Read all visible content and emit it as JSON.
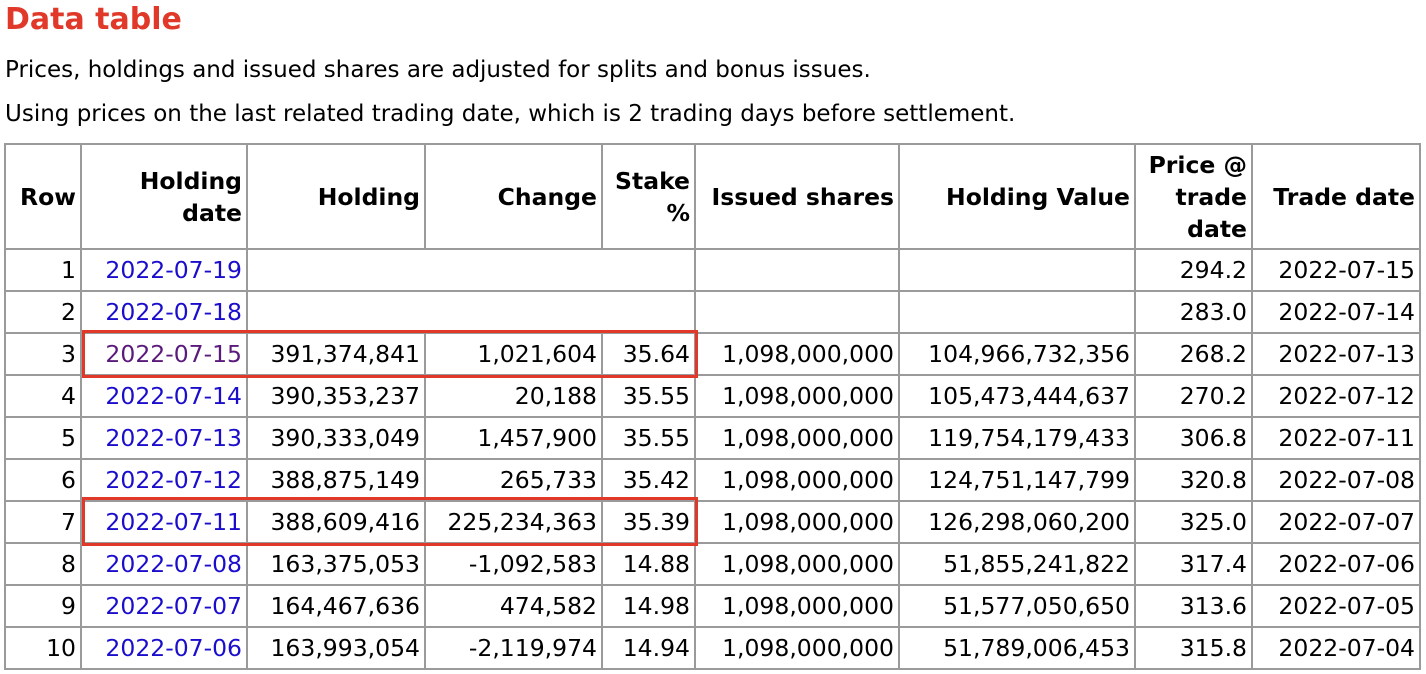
{
  "header": {
    "title": "Data table",
    "notes": [
      "Prices, holdings and issued shares are adjusted for splits and bonus issues.",
      "Using prices on the last related trading date, which is 2 trading days before settlement."
    ]
  },
  "table": {
    "columns": [
      "Row",
      "Holding date",
      "Holding",
      "Change",
      "Stake %",
      "Issued shares",
      "Holding Value",
      "Price @ trade date",
      "Trade date"
    ],
    "rows": [
      {
        "row": "1",
        "date": "2022-07-19",
        "price": "294.2",
        "trade": "2022-07-15"
      },
      {
        "row": "2",
        "date": "2022-07-18",
        "price": "283.0",
        "trade": "2022-07-14"
      },
      {
        "row": "3",
        "date": "2022-07-15",
        "holding": "391,374,841",
        "change": "1,021,604",
        "stake": "35.64",
        "issued": "1,098,000,000",
        "value": "104,966,732,356",
        "price": "268.2",
        "trade": "2022-07-13"
      },
      {
        "row": "4",
        "date": "2022-07-14",
        "holding": "390,353,237",
        "change": "20,188",
        "stake": "35.55",
        "issued": "1,098,000,000",
        "value": "105,473,444,637",
        "price": "270.2",
        "trade": "2022-07-12"
      },
      {
        "row": "5",
        "date": "2022-07-13",
        "holding": "390,333,049",
        "change": "1,457,900",
        "stake": "35.55",
        "issued": "1,098,000,000",
        "value": "119,754,179,433",
        "price": "306.8",
        "trade": "2022-07-11"
      },
      {
        "row": "6",
        "date": "2022-07-12",
        "holding": "388,875,149",
        "change": "265,733",
        "stake": "35.42",
        "issued": "1,098,000,000",
        "value": "124,751,147,799",
        "price": "320.8",
        "trade": "2022-07-08"
      },
      {
        "row": "7",
        "date": "2022-07-11",
        "holding": "388,609,416",
        "change": "225,234,363",
        "stake": "35.39",
        "issued": "1,098,000,000",
        "value": "126,298,060,200",
        "price": "325.0",
        "trade": "2022-07-07"
      },
      {
        "row": "8",
        "date": "2022-07-08",
        "holding": "163,375,053",
        "change": "-1,092,583",
        "stake": "14.88",
        "issued": "1,098,000,000",
        "value": "51,855,241,822",
        "price": "317.4",
        "trade": "2022-07-06"
      },
      {
        "row": "9",
        "date": "2022-07-07",
        "holding": "164,467,636",
        "change": "474,582",
        "stake": "14.98",
        "issued": "1,098,000,000",
        "value": "51,577,050,650",
        "price": "313.6",
        "trade": "2022-07-05"
      },
      {
        "row": "10",
        "date": "2022-07-06",
        "holding": "163,993,054",
        "change": "-2,119,974",
        "stake": "14.94",
        "issued": "1,098,000,000",
        "value": "51,789,006,453",
        "price": "315.8",
        "trade": "2022-07-04"
      }
    ]
  }
}
